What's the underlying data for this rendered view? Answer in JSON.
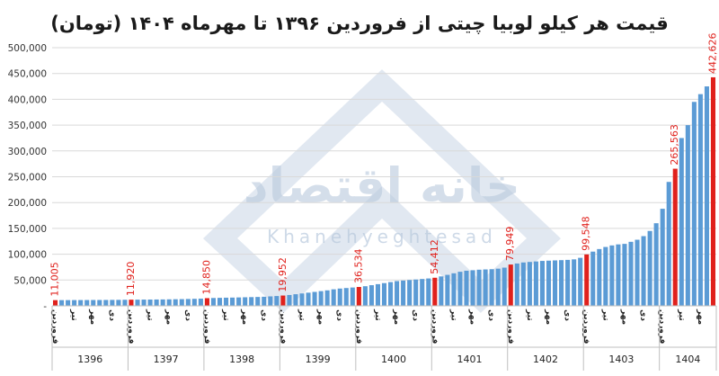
{
  "chart_data": {
    "type": "bar",
    "title": "قیمت هر کیلو لوبیا چیتی از فروردین ۱۳۹۶ تا مهرماه ۱۴۰۴ (تومان)",
    "xlabel": "",
    "ylabel": "",
    "ylim": [
      0,
      500000
    ],
    "yticks": [
      "-",
      "50,000",
      "100,000",
      "150,000",
      "200,000",
      "250,000",
      "300,000",
      "350,000",
      "400,000",
      "450,000",
      "500,000"
    ],
    "grid": true,
    "legend": "none",
    "colors": {
      "normal": "#5b9bd5",
      "highlight": "#e0211c",
      "label": "#e0211c",
      "grid": "#d9d9d9"
    },
    "years": [
      "1396",
      "1397",
      "1398",
      "1399",
      "1400",
      "1401",
      "1402",
      "1403",
      "1404"
    ],
    "month_tick_labels": [
      "فروردین",
      "تیر",
      "مهر",
      "دی"
    ],
    "values": [
      11005,
      11050,
      11100,
      11150,
      11200,
      11250,
      11300,
      11350,
      11400,
      11500,
      11600,
      11750,
      11920,
      12000,
      12100,
      12200,
      12300,
      12400,
      12600,
      12800,
      13000,
      13300,
      13600,
      14000,
      14850,
      15200,
      15500,
      15800,
      16000,
      16300,
      16600,
      16900,
      17200,
      17600,
      18300,
      19000,
      19952,
      21000,
      22500,
      24000,
      25500,
      27000,
      28500,
      30000,
      32000,
      33500,
      34500,
      35500,
      36534,
      38000,
      40000,
      42000,
      44000,
      46000,
      48000,
      49000,
      50000,
      51000,
      52000,
      53000,
      54412,
      57000,
      60000,
      63000,
      66000,
      68000,
      69000,
      70000,
      70500,
      71000,
      72000,
      74000,
      79949,
      82000,
      84000,
      85000,
      86000,
      87000,
      87500,
      88000,
      88500,
      89000,
      90000,
      93000,
      99548,
      105000,
      110000,
      114000,
      117000,
      119000,
      120000,
      124000,
      128000,
      135000,
      145000,
      160000,
      188000,
      240000,
      265563,
      325000,
      350000,
      395000,
      410000,
      425000,
      442626
    ],
    "highlights": [
      {
        "index": 0,
        "label": "11,005"
      },
      {
        "index": 12,
        "label": "11,920"
      },
      {
        "index": 24,
        "label": "14,850"
      },
      {
        "index": 36,
        "label": "19,952"
      },
      {
        "index": 48,
        "label": "36,534"
      },
      {
        "index": 60,
        "label": "54,412"
      },
      {
        "index": 72,
        "label": "79,949"
      },
      {
        "index": 84,
        "label": "99,548"
      },
      {
        "index": 98,
        "label": "265,563"
      },
      {
        "index": 104,
        "label": "442,626"
      }
    ]
  },
  "watermark": {
    "persian": "خانه اقتصاد",
    "latin": "Khanehyeghtesad"
  }
}
